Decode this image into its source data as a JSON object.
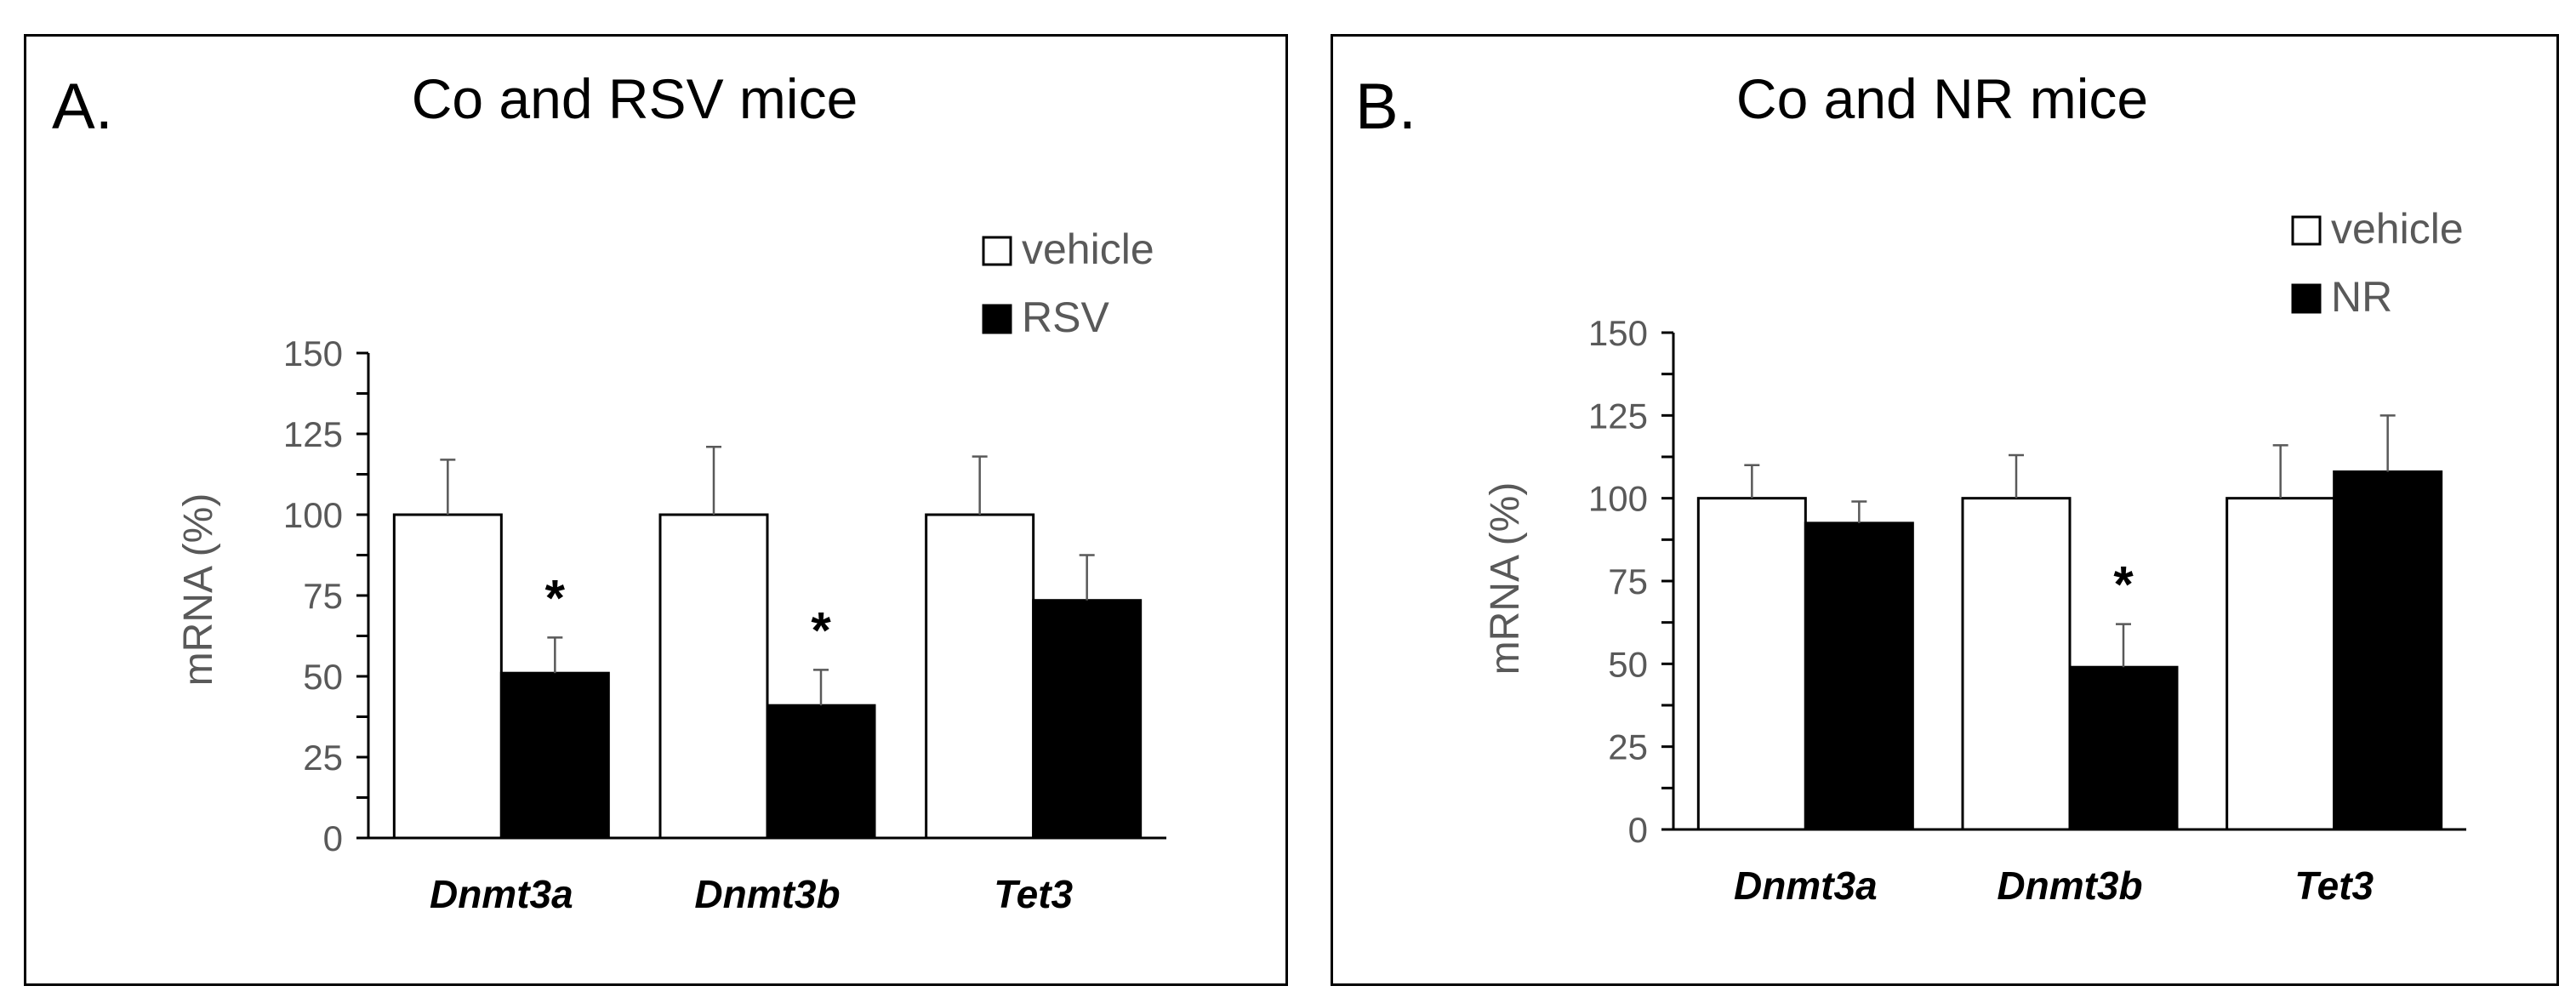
{
  "chart_data": [
    {
      "type": "bar",
      "panel": "A.",
      "title": "Co and RSV mice",
      "xlabel": "",
      "ylabel": "mRNA (%)",
      "ylim": [
        0,
        150
      ],
      "yticks": [
        0,
        25,
        50,
        75,
        100,
        125,
        150
      ],
      "categories": [
        "Dnmt3a",
        "Dnmt3b",
        "Tet3"
      ],
      "series": [
        {
          "name": "vehicle",
          "color": "#ffffff",
          "values": [
            100,
            100,
            100
          ],
          "errors": [
            17,
            21,
            18
          ]
        },
        {
          "name": "RSV",
          "color": "#000000",
          "values": [
            51,
            41,
            73.5
          ],
          "errors": [
            11,
            11,
            14
          ]
        }
      ],
      "significance": [
        "*",
        "*",
        ""
      ],
      "legend_position": "top-right"
    },
    {
      "type": "bar",
      "panel": "B.",
      "title": "Co and NR mice",
      "xlabel": "",
      "ylabel": "mRNA (%)",
      "ylim": [
        0,
        150
      ],
      "yticks": [
        0,
        25,
        50,
        75,
        100,
        125,
        150
      ],
      "categories": [
        "Dnmt3a",
        "Dnmt3b",
        "Tet3"
      ],
      "series": [
        {
          "name": "vehicle",
          "color": "#ffffff",
          "values": [
            100,
            100,
            100
          ],
          "errors": [
            10,
            13,
            16
          ]
        },
        {
          "name": "NR",
          "color": "#000000",
          "values": [
            92.5,
            49,
            108
          ],
          "errors": [
            6.5,
            13,
            17
          ]
        }
      ],
      "significance": [
        "",
        "*",
        ""
      ],
      "legend_position": "top-right"
    }
  ]
}
